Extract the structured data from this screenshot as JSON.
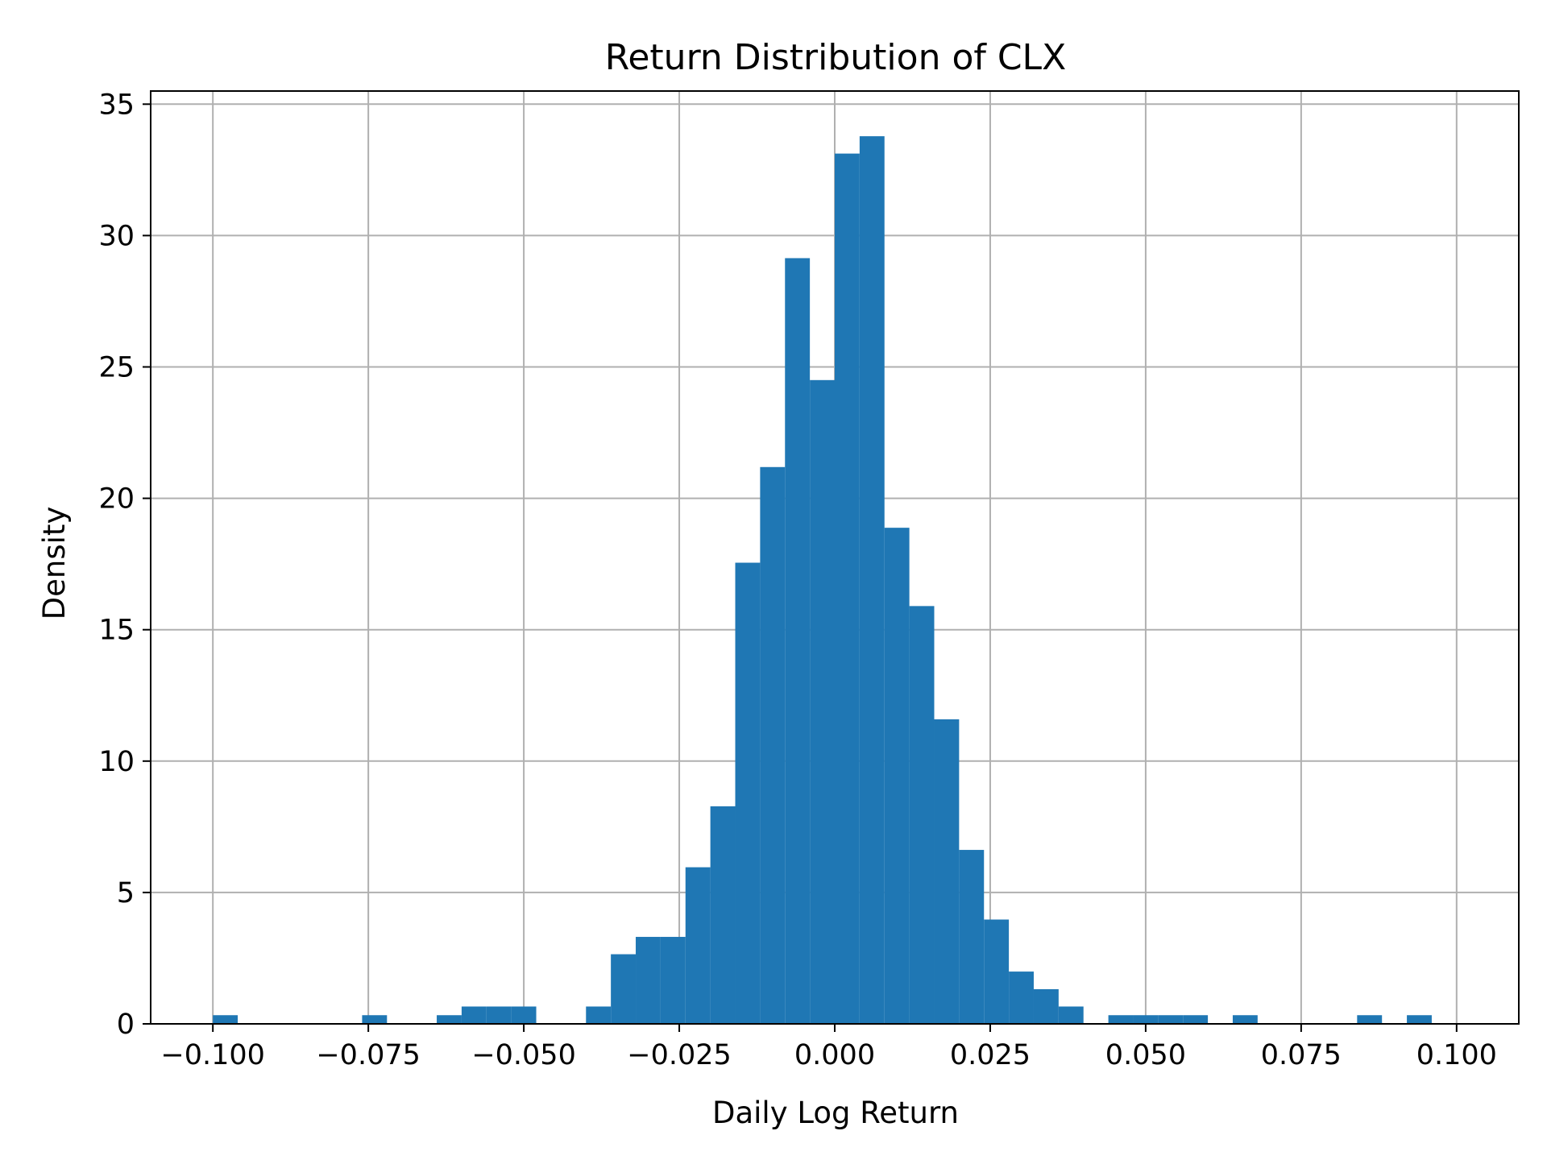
{
  "chart_data": {
    "type": "bar",
    "title": "Return Distribution of CLX",
    "xlabel": "Daily Log Return",
    "ylabel": "Density",
    "xlim": [
      -0.11,
      0.11
    ],
    "ylim": [
      0,
      35.5
    ],
    "grid": true,
    "bar_color": "#1f77b4",
    "grid_color": "#b0b0b0",
    "xticks": [
      -0.1,
      -0.075,
      -0.05,
      -0.025,
      0.0,
      0.025,
      0.05,
      0.075,
      0.1
    ],
    "xtick_labels": [
      "−0.100",
      "−0.075",
      "−0.050",
      "−0.025",
      "0.000",
      "0.025",
      "0.050",
      "0.075",
      "0.100"
    ],
    "yticks": [
      0,
      5,
      10,
      15,
      20,
      25,
      30,
      35
    ],
    "ytick_labels": [
      "0",
      "5",
      "10",
      "15",
      "20",
      "25",
      "30",
      "35"
    ],
    "bin_start": -0.1,
    "bin_width": 0.004,
    "values": [
      0.33,
      0,
      0,
      0,
      0,
      0,
      0.33,
      0,
      0,
      0.33,
      0.66,
      0.66,
      0.66,
      0,
      0,
      0.66,
      2.65,
      3.31,
      3.31,
      5.96,
      8.28,
      17.55,
      21.19,
      29.14,
      24.5,
      33.12,
      33.78,
      18.88,
      15.9,
      11.59,
      6.62,
      3.97,
      1.99,
      1.32,
      0.66,
      0,
      0.33,
      0.33,
      0.33,
      0.33,
      0,
      0.33,
      0,
      0,
      0,
      0,
      0.33,
      0,
      0.33,
      0
    ]
  }
}
